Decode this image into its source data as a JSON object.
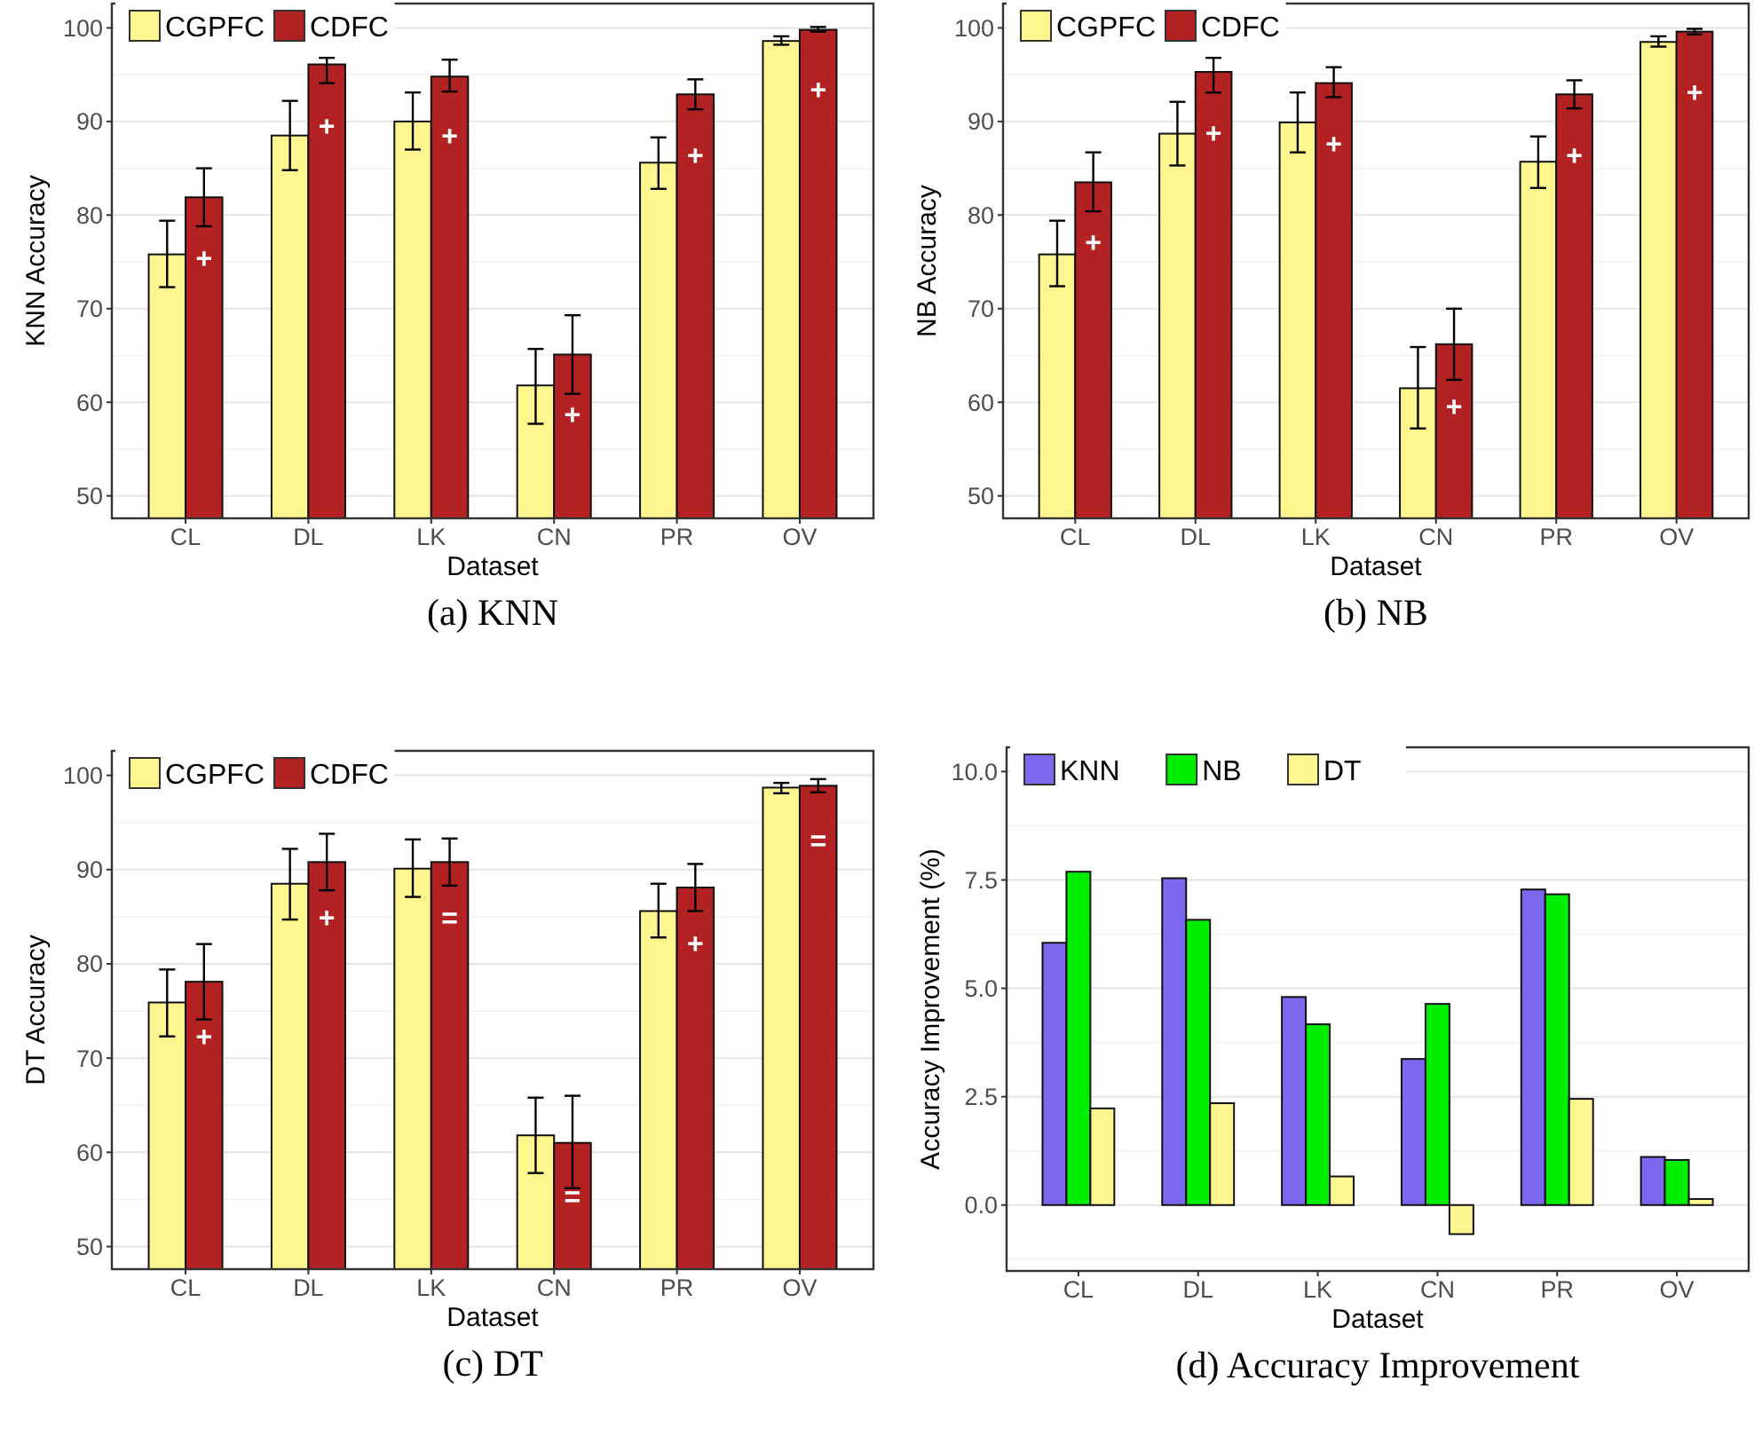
{
  "chart_data": [
    {
      "type": "bar",
      "xlabel": "Dataset",
      "ylabel": "KNN Accuracy",
      "categories": [
        "CL",
        "DL",
        "LK",
        "CN",
        "PR",
        "OV"
      ],
      "ylim": [
        47.6,
        102.6
      ],
      "yticks": [
        50,
        60,
        70,
        80,
        90,
        100
      ],
      "grid": true,
      "legend": "top left",
      "series": [
        {
          "name": "CGPFC",
          "color": "#fff68f",
          "values": [
            75.8,
            88.5,
            90.0,
            61.8,
            85.6,
            98.6
          ],
          "errors": [
            [
              72.3,
              79.4
            ],
            [
              84.8,
              92.2
            ],
            [
              87.0,
              93.1
            ],
            [
              57.7,
              65.7
            ],
            [
              82.8,
              88.3
            ],
            [
              98.2,
              99.1
            ]
          ]
        },
        {
          "name": "CDFC",
          "color": "#b22222",
          "values": [
            81.9,
            96.1,
            94.8,
            65.1,
            92.9,
            99.8
          ],
          "errors": [
            [
              78.8,
              85.0
            ],
            [
              94.1,
              96.8
            ],
            [
              93.2,
              96.6
            ],
            [
              60.9,
              69.3
            ],
            [
              91.3,
              94.5
            ],
            [
              99.6,
              100.1
            ]
          ]
        }
      ],
      "annotations": [
        "(a) KNN",
        {
          "text": "+",
          "x": "CL",
          "y": 75.4
        },
        {
          "text": "+",
          "x": "DL",
          "y": 89.5
        },
        {
          "text": "+",
          "x": "LK",
          "y": 88.5
        },
        {
          "text": "+",
          "x": "CN",
          "y": 58.7
        },
        {
          "text": "+",
          "x": "PR",
          "y": 86.4
        },
        {
          "text": "+",
          "x": "OV",
          "y": 93.4
        }
      ]
    },
    {
      "type": "bar",
      "xlabel": "Dataset",
      "ylabel": "NB Accuracy",
      "categories": [
        "CL",
        "DL",
        "LK",
        "CN",
        "PR",
        "OV"
      ],
      "ylim": [
        47.6,
        102.6
      ],
      "yticks": [
        50,
        60,
        70,
        80,
        90,
        100
      ],
      "grid": true,
      "legend": "top left",
      "series": [
        {
          "name": "CGPFC",
          "color": "#fff68f",
          "values": [
            75.8,
            88.7,
            89.9,
            61.5,
            85.7,
            98.5
          ],
          "errors": [
            [
              72.4,
              79.4
            ],
            [
              85.3,
              92.1
            ],
            [
              86.7,
              93.1
            ],
            [
              57.2,
              65.9
            ],
            [
              82.9,
              88.4
            ],
            [
              98.0,
              99.1
            ]
          ]
        },
        {
          "name": "CDFC",
          "color": "#b22222",
          "values": [
            83.5,
            95.3,
            94.1,
            66.2,
            92.9,
            99.6
          ],
          "errors": [
            [
              80.4,
              86.7
            ],
            [
              93.1,
              96.8
            ],
            [
              92.6,
              95.8
            ],
            [
              62.4,
              70.0
            ],
            [
              91.4,
              94.4
            ],
            [
              99.3,
              99.9
            ]
          ]
        }
      ],
      "annotations": [
        "(b) NB",
        {
          "text": "+",
          "x": "CL",
          "y": 77.1
        },
        {
          "text": "+",
          "x": "DL",
          "y": 88.8
        },
        {
          "text": "+",
          "x": "LK",
          "y": 87.6
        },
        {
          "text": "+",
          "x": "CN",
          "y": 59.6
        },
        {
          "text": "+",
          "x": "PR",
          "y": 86.4
        },
        {
          "text": "+",
          "x": "OV",
          "y": 93.1
        }
      ]
    },
    {
      "type": "bar",
      "xlabel": "Dataset",
      "ylabel": "DT Accuracy",
      "categories": [
        "CL",
        "DL",
        "LK",
        "CN",
        "PR",
        "OV"
      ],
      "ylim": [
        47.6,
        102.6
      ],
      "yticks": [
        50,
        60,
        70,
        80,
        90,
        100
      ],
      "grid": true,
      "legend": "top left",
      "series": [
        {
          "name": "CGPFC",
          "color": "#fff68f",
          "values": [
            75.9,
            88.5,
            90.1,
            61.8,
            85.6,
            98.7
          ],
          "errors": [
            [
              72.3,
              79.4
            ],
            [
              84.7,
              92.2
            ],
            [
              87.1,
              93.2
            ],
            [
              57.8,
              65.8
            ],
            [
              82.8,
              88.5
            ],
            [
              98.1,
              99.2
            ]
          ]
        },
        {
          "name": "CDFC",
          "color": "#b22222",
          "values": [
            78.1,
            90.8,
            90.8,
            61.0,
            88.1,
            98.9
          ],
          "errors": [
            [
              74.1,
              82.1
            ],
            [
              87.8,
              93.8
            ],
            [
              88.3,
              93.3
            ],
            [
              56.2,
              66.0
            ],
            [
              85.6,
              90.6
            ],
            [
              98.2,
              99.6
            ]
          ]
        }
      ],
      "annotations": [
        "(c) DT",
        {
          "text": "+",
          "x": "CL",
          "y": 72.3
        },
        {
          "text": "+",
          "x": "DL",
          "y": 84.9
        },
        {
          "text": "=",
          "x": "LK",
          "y": 84.9
        },
        {
          "text": "=",
          "x": "CN",
          "y": 55.3
        },
        {
          "text": "+",
          "x": "PR",
          "y": 82.2
        },
        {
          "text": "=",
          "x": "OV",
          "y": 93.1
        }
      ]
    },
    {
      "type": "bar",
      "xlabel": "Dataset",
      "ylabel": "Accuracy Improvement (%)",
      "categories": [
        "CL",
        "DL",
        "LK",
        "CN",
        "PR",
        "OV"
      ],
      "ylim": [
        -1.52,
        10.56
      ],
      "yticks": [
        {
          "value": 0,
          "label": "0.0"
        },
        2.5,
        {
          "value": 5,
          "label": "5.0"
        },
        7.5,
        {
          "value": 10,
          "label": "10.0"
        }
      ],
      "grid": true,
      "legend": "top left",
      "series": [
        {
          "name": "KNN",
          "color": "#7b68ee",
          "values": [
            6.05,
            7.54,
            4.8,
            3.37,
            7.28,
            1.11
          ]
        },
        {
          "name": "NB",
          "color": "#00ee00",
          "values": [
            7.69,
            6.58,
            4.17,
            4.64,
            7.17,
            1.04
          ]
        },
        {
          "name": "DT",
          "color": "#fff68f",
          "values": [
            2.23,
            2.35,
            0.66,
            -0.67,
            2.45,
            0.14
          ]
        }
      ],
      "annotations": [
        "(d) Accuracy Improvement"
      ]
    }
  ]
}
